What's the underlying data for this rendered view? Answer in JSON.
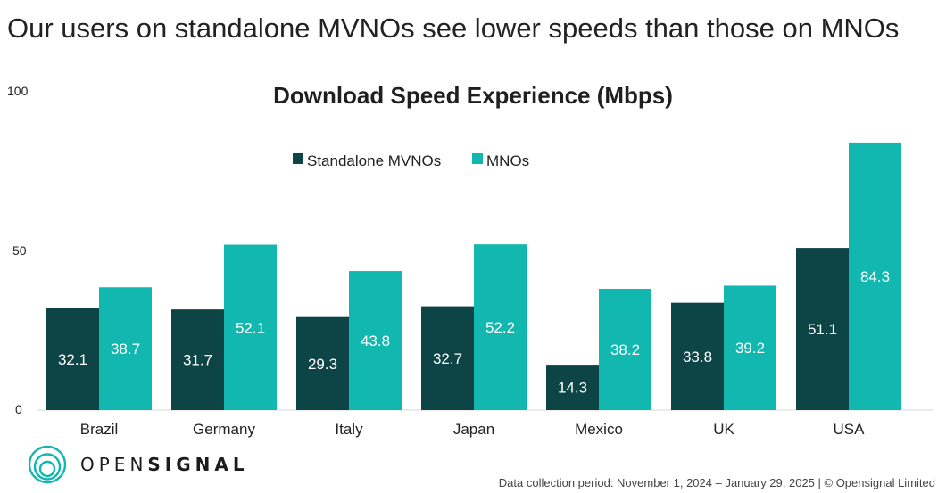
{
  "headline": "Our users on standalone MVNOs see lower speeds than those on MNOs",
  "brand": {
    "part1": "OPEN",
    "part2": "SIGNAL"
  },
  "footnote": "Data collection period: November 1, 2024 – January 29, 2025  |  © Opensignal Limited",
  "colors": {
    "mvno": "#0d4446",
    "mno": "#12b8b0",
    "logo": "#12b8b0"
  },
  "chart_data": {
    "type": "bar",
    "title": "Download Speed Experience (Mbps)",
    "xlabel": "",
    "ylabel": "",
    "ylim": [
      0,
      100
    ],
    "yticks": [
      0,
      50,
      100
    ],
    "grid": false,
    "legend_position": "top-center",
    "categories": [
      "Brazil",
      "Germany",
      "Italy",
      "Japan",
      "Mexico",
      "UK",
      "USA"
    ],
    "series": [
      {
        "name": "Standalone MVNOs",
        "values": [
          32.1,
          31.7,
          29.3,
          32.7,
          14.3,
          33.8,
          51.1
        ]
      },
      {
        "name": "MNOs",
        "values": [
          38.7,
          52.1,
          43.8,
          52.2,
          38.2,
          39.2,
          84.3
        ]
      }
    ]
  }
}
